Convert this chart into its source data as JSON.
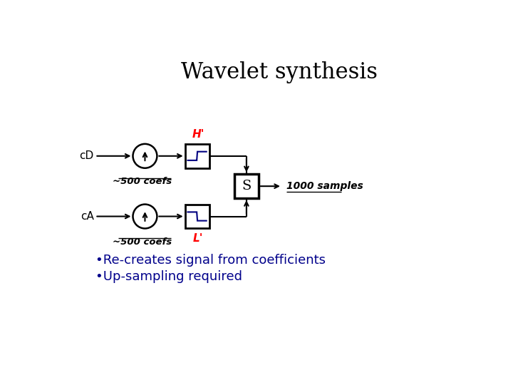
{
  "title": "Wavelet synthesis",
  "title_fontsize": 22,
  "title_color": "#000000",
  "background_color": "#ffffff",
  "bullet1": "•Re-creates signal from coefficients",
  "bullet2": "•Up-sampling required",
  "bullet_color": "#00008B",
  "bullet_fontsize": 13,
  "cd_label": "cD",
  "ca_label": "cA",
  "cd_coefs": "~500 coefs",
  "ca_coefs": "~500 coefs",
  "samples_label": "1000 samples",
  "H_prime": "H'",
  "L_prime": "L'",
  "S_label": "S",
  "red_color": "#FF0000",
  "black_color": "#000000",
  "navy_color": "#000080"
}
